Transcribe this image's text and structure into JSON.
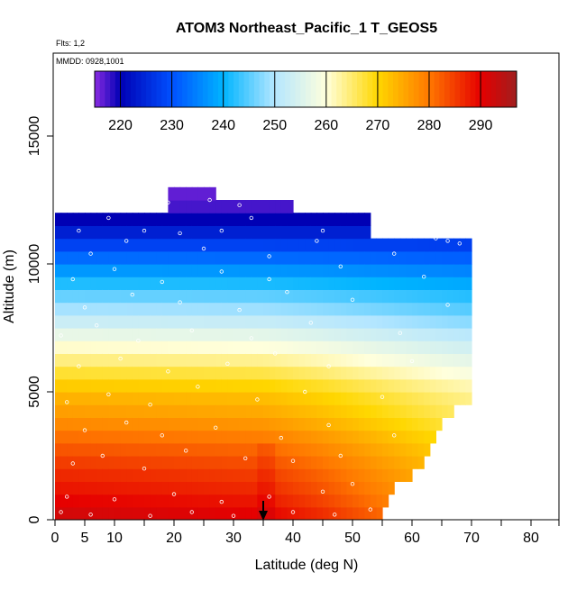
{
  "chart_data": {
    "type": "heatmap",
    "title": "ATOM3 Northeast_Pacific_1 T_GEOS5",
    "flights_label": "Flts: 1,2",
    "dates_label": "MMDD: 0928,1001",
    "xlabel": "Latitude (deg N)",
    "ylabel": "Altitude (m)",
    "xlim": [
      0,
      85
    ],
    "ylim": [
      0,
      17500
    ],
    "x_ticks": [
      0,
      5,
      10,
      20,
      30,
      40,
      50,
      60,
      70,
      80
    ],
    "x_tick_labels": [
      "0",
      "5",
      "10",
      "20",
      "30",
      "40",
      "50",
      "60",
      "70",
      "80"
    ],
    "x_minor_ticks": [
      15,
      25,
      35,
      45,
      55,
      65,
      75,
      85
    ],
    "y_ticks": [
      0,
      5000,
      10000,
      15000
    ],
    "y_tick_labels": [
      "0",
      "5000",
      "10000",
      "15000"
    ],
    "colorbar": {
      "min": 215,
      "max": 297,
      "tick_values": [
        220,
        230,
        240,
        250,
        260,
        270,
        280,
        290
      ],
      "tick_labels": [
        "220",
        "230",
        "240",
        "250",
        "260",
        "270",
        "280",
        "290"
      ],
      "colors": [
        {
          "v": 215,
          "c": "#8a2be2"
        },
        {
          "v": 220,
          "c": "#0000b4"
        },
        {
          "v": 230,
          "c": "#0050ff"
        },
        {
          "v": 240,
          "c": "#00b4ff"
        },
        {
          "v": 250,
          "c": "#b4e6ff"
        },
        {
          "v": 260,
          "c": "#ffffdc"
        },
        {
          "v": 270,
          "c": "#ffd700"
        },
        {
          "v": 280,
          "c": "#ff7800"
        },
        {
          "v": 290,
          "c": "#e60000"
        },
        {
          "v": 297,
          "c": "#a01e1e"
        }
      ]
    },
    "profile": [
      {
        "alt": 0,
        "t": 293
      },
      {
        "alt": 1000,
        "t": 289
      },
      {
        "alt": 2000,
        "t": 286
      },
      {
        "alt": 3000,
        "t": 282
      },
      {
        "alt": 4000,
        "t": 277
      },
      {
        "alt": 5000,
        "t": 273
      },
      {
        "alt": 6000,
        "t": 266
      },
      {
        "alt": 7000,
        "t": 259
      },
      {
        "alt": 8000,
        "t": 251
      },
      {
        "alt": 9000,
        "t": 244
      },
      {
        "alt": 10000,
        "t": 235
      },
      {
        "alt": 11000,
        "t": 226
      },
      {
        "alt": 12000,
        "t": 218
      },
      {
        "alt": 13000,
        "t": 216
      }
    ],
    "latitude_warming": [
      {
        "lat": 0,
        "dt": 0
      },
      {
        "lat": 20,
        "dt": -1
      },
      {
        "lat": 35,
        "dt": -2
      },
      {
        "lat": 45,
        "dt": -6
      },
      {
        "lat": 55,
        "dt": -11
      },
      {
        "lat": 65,
        "dt": -16
      },
      {
        "lat": 72,
        "dt": -19
      }
    ],
    "coverage_top": [
      {
        "lat_from": 0,
        "lat_to": 19,
        "alt": 12000
      },
      {
        "lat_from": 19,
        "lat_to": 27.5,
        "alt": 12900
      },
      {
        "lat_from": 27.5,
        "lat_to": 40.5,
        "alt": 12400
      },
      {
        "lat_from": 40.5,
        "lat_to": 53,
        "alt": 12000
      },
      {
        "lat_from": 53,
        "lat_to": 70.5,
        "alt": 11000
      }
    ],
    "coverage_right_edge": [
      {
        "alt": 0,
        "lat": 55
      },
      {
        "alt": 1000,
        "lat": 56
      },
      {
        "alt": 2000,
        "lat": 61
      },
      {
        "alt": 3000,
        "lat": 63
      },
      {
        "alt": 4000,
        "lat": 66
      },
      {
        "alt": 5000,
        "lat": 71
      },
      {
        "alt": 10000,
        "lat": 71
      },
      {
        "alt": 11000,
        "lat": 70
      }
    ],
    "arrow_latitude": 35,
    "sample_points": [
      [
        1,
        300
      ],
      [
        6,
        200
      ],
      [
        16,
        150
      ],
      [
        23,
        300
      ],
      [
        30,
        150
      ],
      [
        40,
        300
      ],
      [
        47,
        200
      ],
      [
        53,
        400
      ],
      [
        2,
        900
      ],
      [
        10,
        800
      ],
      [
        20,
        1000
      ],
      [
        28,
        700
      ],
      [
        36,
        900
      ],
      [
        45,
        1100
      ],
      [
        50,
        1400
      ],
      [
        3,
        2200
      ],
      [
        8,
        2500
      ],
      [
        15,
        2000
      ],
      [
        22,
        2700
      ],
      [
        32,
        2400
      ],
      [
        40,
        2300
      ],
      [
        48,
        2500
      ],
      [
        5,
        3500
      ],
      [
        12,
        3800
      ],
      [
        18,
        3300
      ],
      [
        27,
        3600
      ],
      [
        38,
        3200
      ],
      [
        46,
        3700
      ],
      [
        57,
        3300
      ],
      [
        2,
        4600
      ],
      [
        9,
        4900
      ],
      [
        16,
        4500
      ],
      [
        24,
        5200
      ],
      [
        34,
        4700
      ],
      [
        42,
        5000
      ],
      [
        55,
        4800
      ],
      [
        4,
        6000
      ],
      [
        11,
        6300
      ],
      [
        19,
        5800
      ],
      [
        29,
        6100
      ],
      [
        37,
        6500
      ],
      [
        46,
        6000
      ],
      [
        60,
        6200
      ],
      [
        1,
        7200
      ],
      [
        7,
        7600
      ],
      [
        14,
        7000
      ],
      [
        23,
        7400
      ],
      [
        33,
        7100
      ],
      [
        43,
        7700
      ],
      [
        58,
        7300
      ],
      [
        5,
        8300
      ],
      [
        13,
        8800
      ],
      [
        21,
        8500
      ],
      [
        31,
        8200
      ],
      [
        39,
        8900
      ],
      [
        50,
        8600
      ],
      [
        66,
        8400
      ],
      [
        3,
        9400
      ],
      [
        10,
        9800
      ],
      [
        18,
        9300
      ],
      [
        28,
        9700
      ],
      [
        36,
        9400
      ],
      [
        48,
        9900
      ],
      [
        62,
        9500
      ],
      [
        6,
        10400
      ],
      [
        12,
        10900
      ],
      [
        25,
        10600
      ],
      [
        36,
        10300
      ],
      [
        44,
        10900
      ],
      [
        57,
        10400
      ],
      [
        4,
        11300
      ],
      [
        9,
        11800
      ],
      [
        15,
        11300
      ],
      [
        21,
        11200
      ],
      [
        28,
        11300
      ],
      [
        33,
        11800
      ],
      [
        45,
        11300
      ],
      [
        56,
        11400
      ],
      [
        58,
        11300
      ],
      [
        60,
        11200
      ],
      [
        62,
        11100
      ],
      [
        64,
        11000
      ],
      [
        66,
        10900
      ],
      [
        68,
        10800
      ],
      [
        11,
        12300
      ],
      [
        19,
        12400
      ],
      [
        26,
        12500
      ],
      [
        28,
        12800
      ],
      [
        31,
        12300
      ]
    ]
  }
}
